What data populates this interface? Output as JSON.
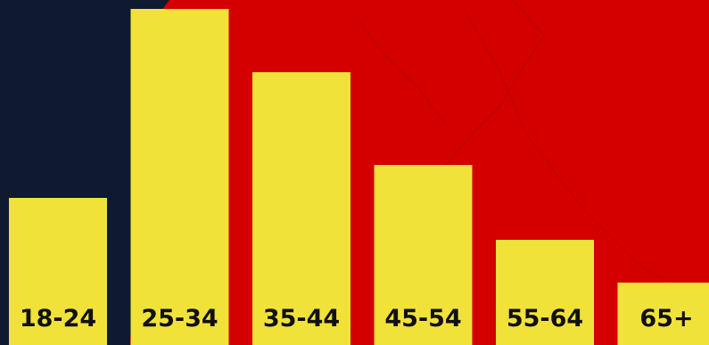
{
  "colors": {
    "background": "#d40000",
    "map_shape": "#0f1a30",
    "bar": "#f1e23a",
    "label": "#111111"
  },
  "chart_data": {
    "type": "bar",
    "categories": [
      "18-24",
      "25-34",
      "35-44",
      "45-54",
      "55-64",
      "65+"
    ],
    "values": [
      165,
      377,
      306,
      202,
      118,
      70
    ],
    "title": "",
    "xlabel": "",
    "ylabel": "",
    "ylim": [
      0,
      387
    ],
    "grid": false,
    "legend": "none"
  }
}
